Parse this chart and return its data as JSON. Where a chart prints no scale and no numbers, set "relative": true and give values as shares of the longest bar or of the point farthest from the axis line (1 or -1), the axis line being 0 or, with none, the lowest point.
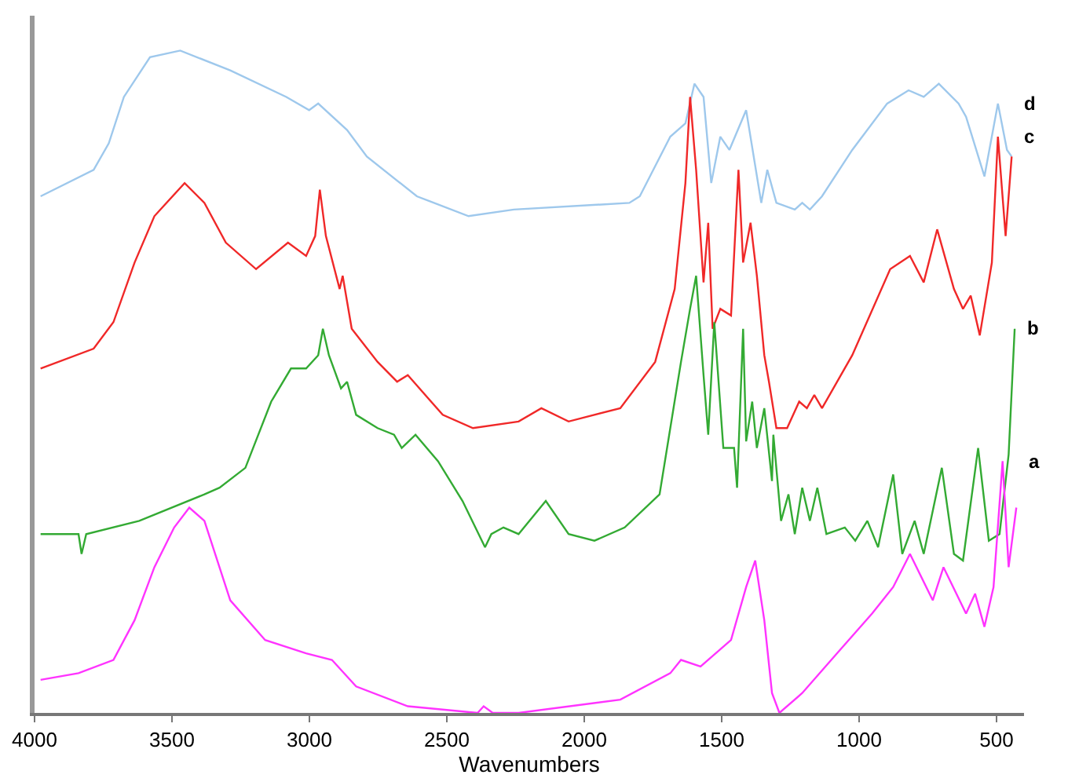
{
  "chart_data": {
    "type": "line",
    "relative": true,
    "xlabel": "Wavenumbers",
    "xlim": [
      4000,
      400
    ],
    "xticks": [
      4000,
      3500,
      3000,
      2500,
      2000,
      1500,
      1000,
      500
    ],
    "tick_labels": "x",
    "grid": false,
    "legend": false,
    "marker": "none",
    "line_style": "solid",
    "series": [
      {
        "name": "d",
        "color": "#9ec8ec",
        "x": [
          3978,
          3785,
          3730,
          3675,
          3580,
          3470,
          3288,
          3084,
          3001,
          2968,
          2863,
          2791,
          2609,
          2421,
          2256,
          1836,
          1798,
          1687,
          1632,
          1599,
          1566,
          1538,
          1505,
          1472,
          1411,
          1356,
          1334,
          1301,
          1234,
          1207,
          1179,
          1135,
          1025,
          898,
          820,
          765,
          710,
          638,
          611,
          544,
          495,
          462,
          445
        ],
        "values": [
          0.78,
          0.82,
          0.86,
          0.93,
          0.99,
          1,
          0.97,
          0.93,
          0.91,
          0.92,
          0.88,
          0.84,
          0.78,
          0.75,
          0.76,
          0.77,
          0.78,
          0.87,
          0.89,
          0.95,
          0.93,
          0.8,
          0.87,
          0.85,
          0.91,
          0.77,
          0.82,
          0.77,
          0.76,
          0.77,
          0.76,
          0.78,
          0.85,
          0.92,
          0.94,
          0.93,
          0.95,
          0.92,
          0.9,
          0.81,
          0.92,
          0.85,
          0.84
        ]
      },
      {
        "name": "c",
        "color": "#f02828",
        "x": [
          3978,
          3785,
          3713,
          3636,
          3564,
          3454,
          3382,
          3304,
          3194,
          3078,
          3012,
          2979,
          2962,
          2940,
          2890,
          2879,
          2846,
          2752,
          2681,
          2642,
          2515,
          2405,
          2239,
          2156,
          2057,
          1869,
          1742,
          1671,
          1632,
          1615,
          1593,
          1566,
          1549,
          1533,
          1505,
          1466,
          1439,
          1422,
          1395,
          1372,
          1345,
          1328,
          1301,
          1262,
          1218,
          1190,
          1163,
          1135,
          1025,
          887,
          815,
          765,
          716,
          655,
          622,
          594,
          561,
          517,
          495,
          467,
          445
        ],
        "values": [
          0.52,
          0.55,
          0.59,
          0.68,
          0.75,
          0.8,
          0.77,
          0.71,
          0.67,
          0.71,
          0.69,
          0.72,
          0.79,
          0.72,
          0.64,
          0.66,
          0.58,
          0.53,
          0.5,
          0.51,
          0.45,
          0.43,
          0.44,
          0.46,
          0.44,
          0.46,
          0.53,
          0.64,
          0.8,
          0.93,
          0.82,
          0.65,
          0.74,
          0.58,
          0.61,
          0.6,
          0.82,
          0.68,
          0.74,
          0.66,
          0.54,
          0.5,
          0.43,
          0.43,
          0.47,
          0.46,
          0.48,
          0.46,
          0.54,
          0.67,
          0.69,
          0.65,
          0.73,
          0.64,
          0.61,
          0.63,
          0.57,
          0.68,
          0.87,
          0.72,
          0.84
        ]
      },
      {
        "name": "b",
        "color": "#33aa33",
        "x": [
          3978,
          3840,
          3829,
          3812,
          3619,
          3382,
          3327,
          3233,
          3139,
          3067,
          3012,
          2968,
          2951,
          2929,
          2885,
          2863,
          2830,
          2752,
          2692,
          2664,
          2614,
          2532,
          2443,
          2361,
          2338,
          2294,
          2239,
          2140,
          2057,
          1963,
          1853,
          1726,
          1648,
          1615,
          1593,
          1566,
          1549,
          1527,
          1494,
          1455,
          1444,
          1422,
          1411,
          1389,
          1372,
          1345,
          1317,
          1312,
          1284,
          1257,
          1234,
          1207,
          1179,
          1152,
          1119,
          1052,
          1014,
          970,
          931,
          876,
          843,
          798,
          765,
          699,
          655,
          622,
          567,
          528,
          489,
          456,
          434
        ],
        "values": [
          0.27,
          0.27,
          0.24,
          0.27,
          0.29,
          0.33,
          0.34,
          0.37,
          0.47,
          0.52,
          0.52,
          0.54,
          0.58,
          0.54,
          0.49,
          0.5,
          0.45,
          0.43,
          0.42,
          0.4,
          0.42,
          0.38,
          0.32,
          0.25,
          0.27,
          0.28,
          0.27,
          0.32,
          0.27,
          0.26,
          0.28,
          0.33,
          0.53,
          0.61,
          0.66,
          0.51,
          0.42,
          0.59,
          0.4,
          0.4,
          0.34,
          0.58,
          0.41,
          0.47,
          0.4,
          0.46,
          0.35,
          0.42,
          0.29,
          0.33,
          0.27,
          0.34,
          0.29,
          0.34,
          0.27,
          0.28,
          0.26,
          0.29,
          0.25,
          0.36,
          0.24,
          0.29,
          0.24,
          0.37,
          0.24,
          0.23,
          0.4,
          0.26,
          0.27,
          0.39,
          0.58
        ]
      },
      {
        "name": "a",
        "color": "#ff33ff",
        "x": [
          3978,
          3840,
          3713,
          3636,
          3564,
          3492,
          3437,
          3382,
          3288,
          3161,
          3012,
          2918,
          2830,
          2642,
          2388,
          2366,
          2333,
          2239,
          1869,
          1687,
          1648,
          1577,
          1466,
          1411,
          1378,
          1345,
          1317,
          1290,
          1207,
          1080,
          953,
          876,
          815,
          732,
          693,
          611,
          578,
          544,
          511,
          478,
          456,
          428
        ],
        "values": [
          0.05,
          0.06,
          0.08,
          0.14,
          0.22,
          0.28,
          0.31,
          0.29,
          0.17,
          0.11,
          0.09,
          0.08,
          0.04,
          0.01,
          0,
          0.01,
          0,
          0,
          0.02,
          0.06,
          0.08,
          0.07,
          0.11,
          0.19,
          0.23,
          0.14,
          0.03,
          0,
          0.03,
          0.09,
          0.15,
          0.19,
          0.24,
          0.17,
          0.22,
          0.15,
          0.18,
          0.13,
          0.19,
          0.38,
          0.22,
          0.31
        ]
      }
    ]
  }
}
